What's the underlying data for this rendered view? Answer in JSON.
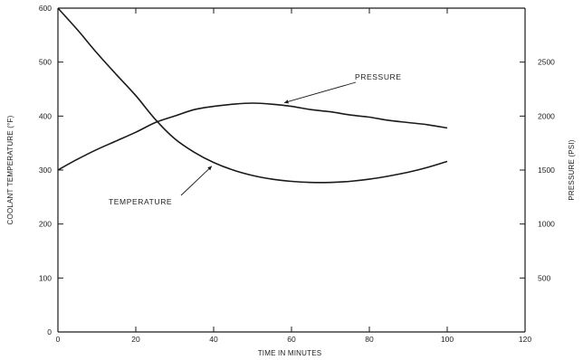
{
  "chart_data": {
    "type": "line",
    "title": "",
    "xlabel": "TIME IN MINUTES",
    "ylabel_left": "COOLANT TEMPERATURE (°F)",
    "ylabel_right": "PRESSURE (PSI)",
    "xlim": [
      0,
      120
    ],
    "ylim_left": [
      0,
      600
    ],
    "ylim_right": [
      0,
      3000
    ],
    "x_ticks": [
      0,
      20,
      40,
      60,
      80,
      100,
      120
    ],
    "y_left_ticks": [
      0,
      100,
      200,
      300,
      400,
      500,
      600
    ],
    "y_right_ticks": [
      500,
      1000,
      1500,
      2000,
      2500
    ],
    "grid": false,
    "series": [
      {
        "name": "TEMPERATURE",
        "axis": "left",
        "x": [
          0,
          5,
          10,
          15,
          20,
          25,
          30,
          35,
          40,
          45,
          50,
          55,
          60,
          65,
          70,
          75,
          80,
          85,
          90,
          95,
          100
        ],
        "y": [
          600,
          560,
          517,
          477,
          438,
          394,
          358,
          333,
          314,
          300,
          290,
          283,
          279,
          277,
          277,
          279,
          283,
          289,
          296,
          305,
          316
        ]
      },
      {
        "name": "PRESSURE",
        "axis": "right",
        "x": [
          0,
          5,
          10,
          15,
          20,
          25,
          30,
          35,
          40,
          45,
          50,
          55,
          60,
          65,
          70,
          75,
          80,
          85,
          90,
          95,
          100
        ],
        "y": [
          1500,
          1600,
          1690,
          1770,
          1850,
          1940,
          2000,
          2060,
          2090,
          2110,
          2120,
          2110,
          2090,
          2060,
          2040,
          2010,
          1990,
          1960,
          1940,
          1920,
          1890
        ]
      }
    ],
    "annotations": [
      {
        "text": "PRESSURE",
        "series": "PRESSURE"
      },
      {
        "text": "TEMPERATURE",
        "series": "TEMPERATURE"
      }
    ]
  }
}
